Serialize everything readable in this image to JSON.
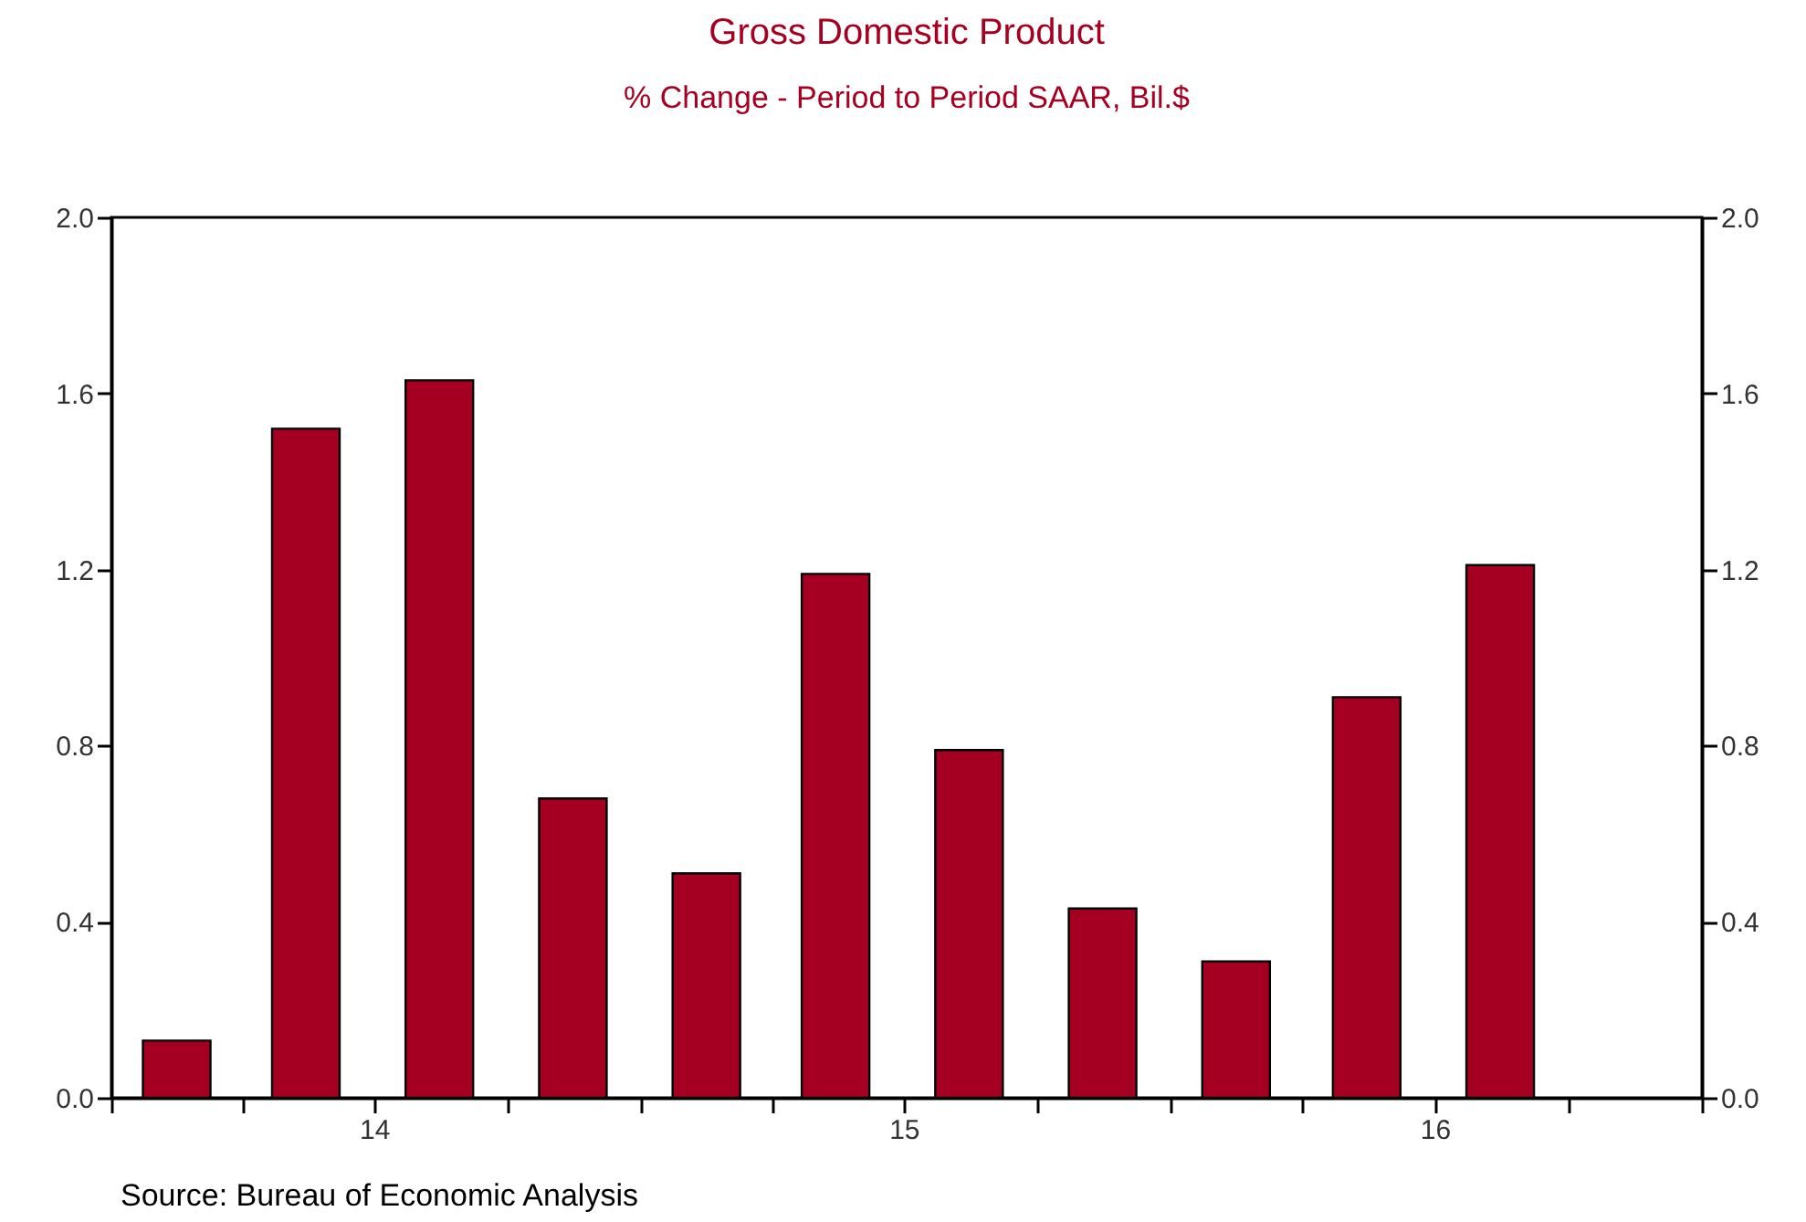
{
  "chart_data": {
    "type": "bar",
    "title": "Gross Domestic Product",
    "subtitle": "% Change - Period to Period    SAAR, Bil.$",
    "x": [
      "2014-02-15",
      "2014-05-15",
      "2014-08-15",
      "2014-11-15",
      "2015-02-15",
      "2015-05-15",
      "2015-08-15",
      "2015-11-15",
      "2016-02-15",
      "2016-05-15",
      "2016-08-15"
    ],
    "values": [
      0.13,
      1.52,
      1.63,
      0.68,
      0.51,
      1.19,
      0.79,
      0.43,
      0.31,
      0.91,
      1.21
    ],
    "color": "#a50021",
    "xlim": [
      "2014-01-01",
      "2017-01-01"
    ],
    "xticks": [
      {
        "value": "2014-01-01",
        "label": null
      },
      {
        "value": "2014-04-01",
        "label": null
      },
      {
        "value": "2014-07-01",
        "label": "14"
      },
      {
        "value": "2014-10-01",
        "label": null
      },
      {
        "value": "2015-01-01",
        "label": null
      },
      {
        "value": "2015-04-01",
        "label": null
      },
      {
        "value": "2015-07-01",
        "label": "15"
      },
      {
        "value": "2015-10-01",
        "label": null
      },
      {
        "value": "2016-01-01",
        "label": null
      },
      {
        "value": "2016-04-01",
        "label": null
      },
      {
        "value": "2016-07-01",
        "label": "16"
      },
      {
        "value": "2016-10-01",
        "label": null
      },
      {
        "value": "2017-01-01",
        "label": null
      }
    ],
    "ylim": [
      0,
      2
    ],
    "yticks": [
      {
        "value": 0,
        "label": "0.0"
      },
      {
        "value": 0.4,
        "label": "0.4"
      },
      {
        "value": 0.8,
        "label": "0.8"
      },
      {
        "value": 1.2,
        "label": "1.2"
      },
      {
        "value": 1.6,
        "label": "1.6"
      },
      {
        "value": 2,
        "label": "2.0"
      }
    ],
    "y2lim": [
      0,
      2
    ],
    "y2ticks": [
      {
        "value": 0,
        "label": "0.0"
      },
      {
        "value": 0.4,
        "label": "0.4"
      },
      {
        "value": 0.8,
        "label": "0.8"
      },
      {
        "value": 1.2,
        "label": "1.2"
      },
      {
        "value": 1.6,
        "label": "1.6"
      },
      {
        "value": 2,
        "label": "2.0"
      }
    ],
    "annotations": [
      "Source:  Bureau of Economic Analysis"
    ]
  }
}
